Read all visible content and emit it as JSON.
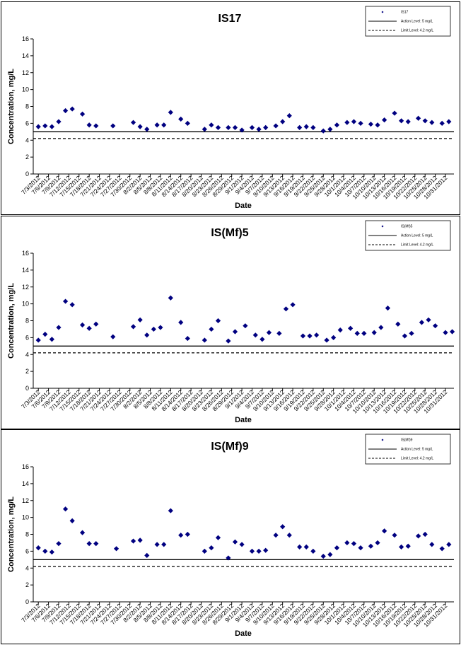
{
  "chart_data": [
    {
      "type": "scatter",
      "title": "IS17",
      "xlabel": "Date",
      "ylabel": "Concentration, mg/L",
      "ylim": [
        0,
        16
      ],
      "y_ticks": [
        "0",
        "2",
        "4",
        "6",
        "8",
        "10",
        "12",
        "14",
        "16"
      ],
      "x_tick_labels": [
        "7/3/2012",
        "7/6/2012",
        "7/9/2012",
        "7/12/2012",
        "7/15/2012",
        "7/18/2012",
        "7/21/2012",
        "7/24/2012",
        "7/27/2012",
        "7/30/2012",
        "8/2/2012",
        "8/5/2012",
        "8/8/2012",
        "8/11/2012",
        "8/14/2012",
        "8/17/2012",
        "8/20/2012",
        "8/23/2012",
        "8/26/2012",
        "8/29/2012",
        "9/1/2012",
        "9/4/2012",
        "9/7/2012",
        "9/10/2012",
        "9/13/2012",
        "9/16/2012",
        "9/19/2012",
        "9/22/2012",
        "9/25/2012",
        "9/28/2012",
        "10/1/2012",
        "10/4/2012",
        "10/7/2012",
        "10/10/2012",
        "10/13/2012",
        "10/16/2012",
        "10/19/2012",
        "10/22/2012",
        "10/25/2012",
        "10/28/2012",
        "10/31/2012"
      ],
      "legend": {
        "position": "top-right",
        "series_label": "IS17",
        "action_label": "Action Level: 5 mg/L",
        "limit_label": "Limit Level: 4.2 mg/L"
      },
      "action_level": 5,
      "limit_level": 4.2,
      "series": [
        {
          "name": "IS17",
          "x": [
            "7/3/2012",
            "7/5/2012",
            "7/7/2012",
            "7/9/2012",
            "7/11/2012",
            "7/13/2012",
            "7/16/2012",
            "7/18/2012",
            "7/20/2012",
            "7/25/2012",
            "7/31/2012",
            "8/2/2012",
            "8/4/2012",
            "8/7/2012",
            "8/9/2012",
            "8/11/2012",
            "8/14/2012",
            "8/16/2012",
            "8/21/2012",
            "8/23/2012",
            "8/25/2012",
            "8/28/2012",
            "8/30/2012",
            "9/1/2012",
            "9/4/2012",
            "9/6/2012",
            "9/8/2012",
            "9/11/2012",
            "9/13/2012",
            "9/15/2012",
            "9/18/2012",
            "9/20/2012",
            "9/22/2012",
            "9/25/2012",
            "9/27/2012",
            "9/29/2012",
            "10/2/2012",
            "10/4/2012",
            "10/6/2012",
            "10/9/2012",
            "10/11/2012",
            "10/13/2012",
            "10/16/2012",
            "10/18/2012",
            "10/20/2012",
            "10/23/2012",
            "10/25/2012",
            "10/27/2012",
            "10/30/2012",
            "11/1/2012"
          ],
          "y": [
            5.6,
            5.7,
            5.6,
            6.2,
            7.5,
            7.7,
            7.1,
            5.8,
            5.7,
            5.7,
            6.1,
            5.6,
            5.3,
            5.8,
            5.8,
            7.3,
            6.5,
            6.0,
            5.3,
            5.8,
            5.5,
            5.5,
            5.5,
            5.2,
            5.5,
            5.3,
            5.5,
            5.7,
            6.2,
            6.9,
            5.5,
            5.6,
            5.5,
            5.1,
            5.3,
            5.8,
            6.1,
            6.2,
            6.0,
            5.9,
            5.8,
            6.4,
            7.2,
            6.3,
            6.2,
            6.6,
            6.3,
            6.1,
            6.0,
            6.2
          ]
        }
      ]
    },
    {
      "type": "scatter",
      "title": "IS(Mf)5",
      "xlabel": "Date",
      "ylabel": "Concentration, mg/L",
      "ylim": [
        0,
        16
      ],
      "y_ticks": [
        "0",
        "2",
        "4",
        "6",
        "8",
        "10",
        "12",
        "14",
        "16"
      ],
      "x_tick_labels": [
        "7/3/2012",
        "7/6/2012",
        "7/9/2012",
        "7/12/2012",
        "7/15/2012",
        "7/18/2012",
        "7/21/2012",
        "7/24/2012",
        "7/27/2012",
        "7/30/2012",
        "8/2/2012",
        "8/5/2012",
        "8/8/2012",
        "8/11/2012",
        "8/14/2012",
        "8/17/2012",
        "8/20/2012",
        "8/23/2012",
        "8/26/2012",
        "8/29/2012",
        "9/1/2012",
        "9/4/2012",
        "9/7/2012",
        "9/10/2012",
        "9/13/2012",
        "9/16/2012",
        "9/19/2012",
        "9/22/2012",
        "9/25/2012",
        "9/28/2012",
        "10/1/2012",
        "10/4/2012",
        "10/7/2012",
        "10/10/2012",
        "10/13/2012",
        "10/16/2012",
        "10/19/2012",
        "10/22/2012",
        "10/25/2012",
        "10/28/2012",
        "10/31/2012"
      ],
      "legend": {
        "position": "top-right",
        "series_label": "IS(Mf)5",
        "action_label": "Action Level: 5 mg/L",
        "limit_label": "Limit Level: 4.2 mg/L"
      },
      "action_level": 5,
      "limit_level": 4.2,
      "series": [
        {
          "name": "IS(Mf)5",
          "x": [
            "7/3/2012",
            "7/5/2012",
            "7/7/2012",
            "7/9/2012",
            "7/11/2012",
            "7/13/2012",
            "7/16/2012",
            "7/18/2012",
            "7/20/2012",
            "7/25/2012",
            "7/31/2012",
            "8/2/2012",
            "8/4/2012",
            "8/6/2012",
            "8/8/2012",
            "8/11/2012",
            "8/14/2012",
            "8/16/2012",
            "8/21/2012",
            "8/23/2012",
            "8/25/2012",
            "8/28/2012",
            "8/30/2012",
            "9/2/2012",
            "9/5/2012",
            "9/7/2012",
            "9/9/2012",
            "9/12/2012",
            "9/14/2012",
            "9/16/2012",
            "9/19/2012",
            "9/21/2012",
            "9/23/2012",
            "9/26/2012",
            "9/28/2012",
            "9/30/2012",
            "10/3/2012",
            "10/5/2012",
            "10/7/2012",
            "10/10/2012",
            "10/12/2012",
            "10/14/2012",
            "10/17/2012",
            "10/19/2012",
            "10/21/2012",
            "10/24/2012",
            "10/26/2012",
            "10/28/2012",
            "10/31/2012",
            "11/2/2012"
          ],
          "y": [
            5.7,
            6.4,
            5.8,
            7.2,
            10.3,
            9.9,
            7.5,
            7.1,
            7.6,
            6.1,
            7.3,
            8.1,
            6.3,
            7.0,
            7.2,
            10.7,
            7.8,
            5.9,
            5.7,
            7.0,
            8.0,
            5.6,
            6.7,
            7.4,
            6.3,
            5.8,
            6.6,
            6.5,
            9.4,
            9.9,
            6.2,
            6.2,
            6.3,
            5.7,
            6.0,
            6.9,
            7.1,
            6.5,
            6.5,
            6.6,
            7.2,
            9.5,
            7.6,
            6.2,
            6.5,
            7.8,
            8.1,
            7.4,
            6.6,
            6.7
          ]
        }
      ]
    },
    {
      "type": "scatter",
      "title": "IS(Mf)9",
      "xlabel": "Date",
      "ylabel": "Concentration, mg/L",
      "ylim": [
        0,
        16
      ],
      "y_ticks": [
        "0",
        "2",
        "4",
        "6",
        "8",
        "10",
        "12",
        "14",
        "16"
      ],
      "x_tick_labels": [
        "7/3/2012",
        "7/6/2012",
        "7/9/2012",
        "7/12/2012",
        "7/15/2012",
        "7/18/2012",
        "7/21/2012",
        "7/24/2012",
        "7/27/2012",
        "7/30/2012",
        "8/2/2012",
        "8/5/2012",
        "8/8/2012",
        "8/11/2012",
        "8/14/2012",
        "8/17/2012",
        "8/20/2012",
        "8/23/2012",
        "8/26/2012",
        "8/29/2012",
        "9/1/2012",
        "9/4/2012",
        "9/7/2012",
        "9/10/2012",
        "9/13/2012",
        "9/16/2012",
        "9/19/2012",
        "9/22/2012",
        "9/25/2012",
        "9/28/2012",
        "10/1/2012",
        "10/4/2012",
        "10/7/2012",
        "10/10/2012",
        "10/13/2012",
        "10/16/2012",
        "10/19/2012",
        "10/22/2012",
        "10/25/2012",
        "10/28/2012",
        "10/31/2012"
      ],
      "legend": {
        "position": "top-right",
        "series_label": "IS(Mf)9",
        "action_label": "Action Level: 5 mg/L",
        "limit_label": "Limit Level: 4.2 mg/L"
      },
      "action_level": 5,
      "limit_level": 4.2,
      "series": [
        {
          "name": "IS(Mf)9",
          "x": [
            "7/3/2012",
            "7/5/2012",
            "7/7/2012",
            "7/9/2012",
            "7/11/2012",
            "7/13/2012",
            "7/16/2012",
            "7/18/2012",
            "7/20/2012",
            "7/26/2012",
            "7/31/2012",
            "8/2/2012",
            "8/4/2012",
            "8/7/2012",
            "8/9/2012",
            "8/11/2012",
            "8/14/2012",
            "8/16/2012",
            "8/21/2012",
            "8/23/2012",
            "8/25/2012",
            "8/28/2012",
            "8/30/2012",
            "9/1/2012",
            "9/4/2012",
            "9/6/2012",
            "9/8/2012",
            "9/11/2012",
            "9/13/2012",
            "9/15/2012",
            "9/18/2012",
            "9/20/2012",
            "9/22/2012",
            "9/25/2012",
            "9/27/2012",
            "9/29/2012",
            "10/2/2012",
            "10/4/2012",
            "10/6/2012",
            "10/9/2012",
            "10/11/2012",
            "10/13/2012",
            "10/16/2012",
            "10/18/2012",
            "10/20/2012",
            "10/23/2012",
            "10/25/2012",
            "10/27/2012",
            "10/30/2012",
            "11/1/2012"
          ],
          "y": [
            6.4,
            6.0,
            5.9,
            6.9,
            11.0,
            9.6,
            8.2,
            6.9,
            6.9,
            6.3,
            7.2,
            7.3,
            5.5,
            6.8,
            6.8,
            10.8,
            7.9,
            8.0,
            6.0,
            6.4,
            7.6,
            5.2,
            7.1,
            6.8,
            6.0,
            6.0,
            6.1,
            7.9,
            8.9,
            7.9,
            6.5,
            6.5,
            6.0,
            5.4,
            5.6,
            6.4,
            7.0,
            6.9,
            6.4,
            6.6,
            7.0,
            8.4,
            7.9,
            6.5,
            6.6,
            7.8,
            8.0,
            6.8,
            6.3,
            6.8
          ]
        }
      ]
    }
  ]
}
